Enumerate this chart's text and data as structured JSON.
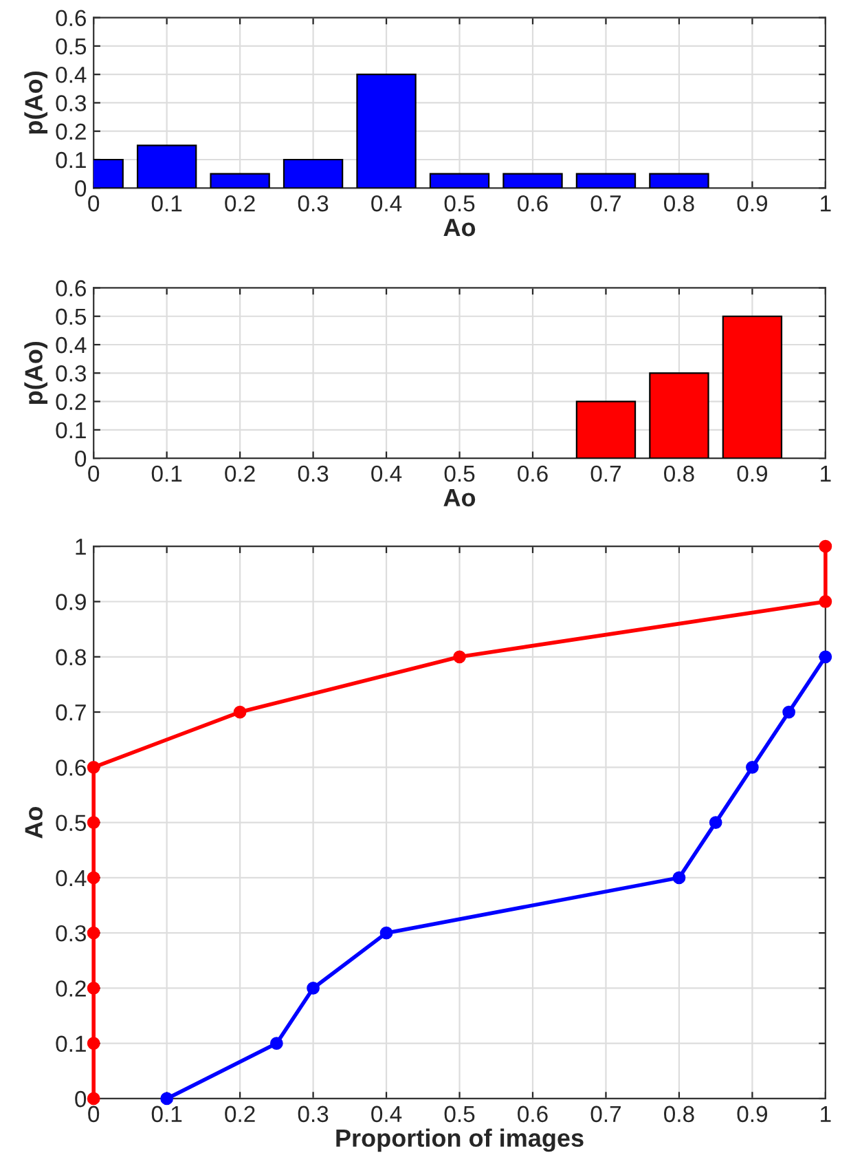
{
  "chart_data": [
    {
      "type": "bar",
      "xlabel": "Ao",
      "ylabel": "p(Ao)",
      "x": [
        0,
        0.1,
        0.2,
        0.3,
        0.4,
        0.5,
        0.6,
        0.7,
        0.8
      ],
      "values": [
        0.1,
        0.15,
        0.05,
        0.1,
        0.4,
        0.05,
        0.05,
        0.05,
        0.05
      ],
      "color": "#0000ff",
      "xlim": [
        0,
        1
      ],
      "xticks": [
        0,
        0.1,
        0.2,
        0.3,
        0.4,
        0.5,
        0.6,
        0.7,
        0.8,
        0.9,
        1
      ],
      "ylim": [
        0,
        0.6
      ],
      "yticks": [
        0,
        0.1,
        0.2,
        0.3,
        0.4,
        0.5,
        0.6
      ],
      "grid": true
    },
    {
      "type": "bar",
      "xlabel": "Ao",
      "ylabel": "p(Ao)",
      "x": [
        0.7,
        0.8,
        0.9
      ],
      "values": [
        0.2,
        0.3,
        0.5
      ],
      "color": "#ff0000",
      "xlim": [
        0,
        1
      ],
      "xticks": [
        0,
        0.1,
        0.2,
        0.3,
        0.4,
        0.5,
        0.6,
        0.7,
        0.8,
        0.9,
        1
      ],
      "ylim": [
        0,
        0.6
      ],
      "yticks": [
        0,
        0.1,
        0.2,
        0.3,
        0.4,
        0.5,
        0.6
      ],
      "grid": true
    },
    {
      "type": "line",
      "xlabel": "Proportion of images",
      "ylabel": "Ao",
      "marker": "circle",
      "grid": true,
      "xlim": [
        0,
        1
      ],
      "xticks": [
        0,
        0.1,
        0.2,
        0.3,
        0.4,
        0.5,
        0.6,
        0.7,
        0.8,
        0.9,
        1
      ],
      "ylim": [
        0,
        1
      ],
      "yticks": [
        0,
        0.1,
        0.2,
        0.3,
        0.4,
        0.5,
        0.6,
        0.7,
        0.8,
        0.9,
        1
      ],
      "series": [
        {
          "color": "#0000ff",
          "x": [
            0.1,
            0.25,
            0.3,
            0.4,
            0.8,
            0.85,
            0.9,
            0.95,
            1
          ],
          "values": [
            0,
            0.1,
            0.2,
            0.3,
            0.4,
            0.5,
            0.6,
            0.7,
            0.8
          ]
        },
        {
          "color": "#ff0000",
          "x": [
            0,
            0,
            0,
            0,
            0,
            0,
            0,
            0.2,
            0.5,
            1,
            1
          ],
          "values": [
            0,
            0.1,
            0.2,
            0.3,
            0.4,
            0.5,
            0.6,
            0.7,
            0.8,
            0.9,
            1
          ]
        }
      ]
    }
  ]
}
